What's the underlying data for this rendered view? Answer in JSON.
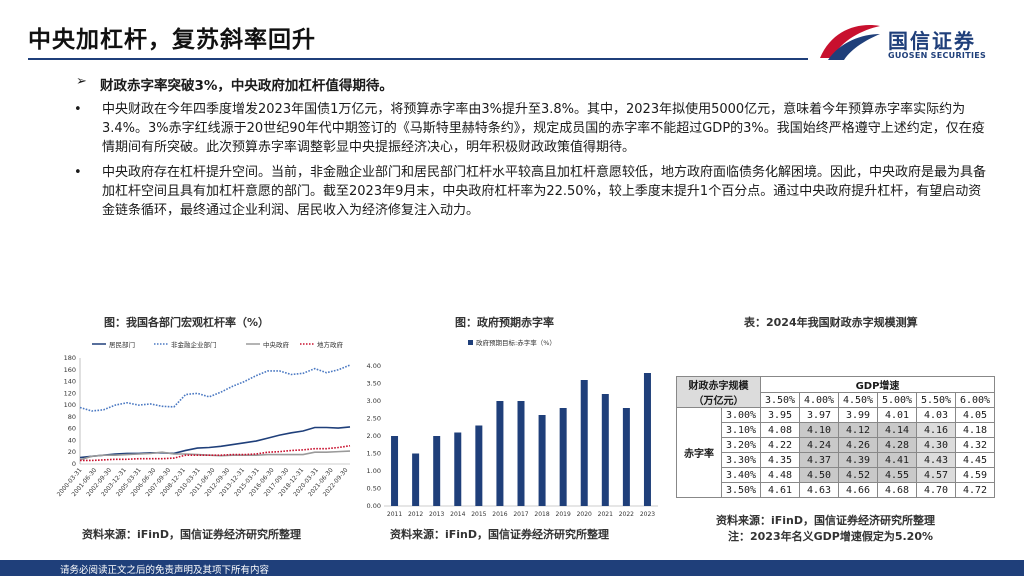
{
  "header": {
    "title": "中央加杠杆，复苏斜率回升",
    "logo_cn": "国信证券",
    "logo_en": "GUOSEN SECURITIES"
  },
  "content": {
    "heading": "财政赤字率突破3%，中央政府加杠杆值得期待。",
    "para1": "中央财政在今年四季度增发2023年国债1万亿元，将预算赤字率由3%提升至3.8%。其中，2023年拟使用5000亿元，意味着今年预算赤字率实际约为3.4%。3%赤字红线源于20世纪90年代中期签订的《马斯特里赫特条约》，规定成员国的赤字率不能超过GDP的3%。我国始终严格遵守上述约定，仅在疫情期间有所突破。此次预算赤字率调整彰显中央提振经济决心，明年积极财政政策值得期待。",
    "para2": "中央政府存在杠杆提升空间。当前，非金融企业部门和居民部门杠杆水平较高且加杠杆意愿较低，地方政府面临债务化解困境。因此，中央政府是最为具备加杠杆空间且具有加杠杆意愿的部门。截至2023年9月末，中央政府杠杆率为22.50%，较上季度末提升1个百分点。通过中央政府提升杠杆，有望启动资金链条循环，最终通过企业利润、居民收入为经济修复注入动力。"
  },
  "figures": {
    "fig1_caption": "图：我国各部门宏观杠杆率（%）",
    "fig2_caption": "图：政府预期赤字率",
    "fig3_caption": "表：2024年我国财政赤字规模测算",
    "source1": "资料来源：iFinD，国信证券经济研究所整理",
    "source2": "资料来源：iFinD，国信证券经济研究所整理",
    "source3": "资料来源：iFinD，国信证券经济研究所整理",
    "note3": "注：2023年名义GDP增速假定为5.20%"
  },
  "footer": {
    "disclaimer": "请务必阅读正文之后的免责声明及其项下所有内容"
  },
  "colors": {
    "navy": "#1f3f7a",
    "red": "#c8102e",
    "bar": "#1f3f7a"
  },
  "chart_data": [
    {
      "type": "line",
      "title": "",
      "legend": [
        "居民部门",
        "非金融企业部门",
        "中央政府",
        "地方政府"
      ],
      "legend_position": "top",
      "ylim": [
        0,
        180
      ],
      "y_ticks": [
        0,
        20,
        40,
        60,
        80,
        100,
        120,
        140,
        160,
        180
      ],
      "x_tick_labels": [
        "2000-03-31",
        "2001-06-30",
        "2002-09-30",
        "2003-12-31",
        "2005-03-31",
        "2006-06-30",
        "2007-09-30",
        "2008-12-31",
        "2010-03-31",
        "2011-06-30",
        "2012-09-30",
        "2013-12-31",
        "2015-03-31",
        "2016-06-30",
        "2017-09-30",
        "2018-12-31",
        "2020-03-31",
        "2021-06-30",
        "2022-09-30"
      ],
      "x": [
        2000,
        2001,
        2002,
        2003,
        2004,
        2005,
        2006,
        2007,
        2008,
        2009,
        2010,
        2011,
        2012,
        2013,
        2014,
        2015,
        2016,
        2017,
        2018,
        2019,
        2020,
        2021,
        2022,
        2023
      ],
      "series": [
        {
          "name": "居民部门",
          "style": "solid",
          "color": "#1f3f7a",
          "values": [
            11,
            13,
            15,
            17,
            18,
            18,
            19,
            19,
            18,
            23,
            27,
            28,
            30,
            33,
            36,
            39,
            44,
            49,
            53,
            56,
            62,
            62,
            61,
            63
          ]
        },
        {
          "name": "非金融企业部门",
          "style": "dotted",
          "color": "#4a78c2",
          "values": [
            96,
            90,
            92,
            100,
            104,
            100,
            102,
            98,
            97,
            118,
            120,
            114,
            122,
            132,
            140,
            150,
            158,
            158,
            152,
            154,
            162,
            155,
            160,
            168
          ]
        },
        {
          "name": "中央政府",
          "style": "solid",
          "color": "#9a9a9a",
          "values": [
            7,
            13,
            15,
            15,
            16,
            17,
            18,
            20,
            17,
            17,
            16,
            15,
            14,
            15,
            15,
            15,
            16,
            16,
            16,
            16,
            20,
            20,
            21,
            22
          ]
        },
        {
          "name": "地方政府",
          "style": "dotted",
          "color": "#c8102e",
          "values": [
            6,
            6,
            7,
            8,
            8,
            9,
            9,
            9,
            10,
            15,
            15,
            15,
            15,
            16,
            16,
            17,
            20,
            21,
            23,
            24,
            26,
            26,
            28,
            31
          ]
        }
      ]
    },
    {
      "type": "bar",
      "title": "",
      "legend": [
        "政府预期目标:赤字率（%）"
      ],
      "categories": [
        "2011",
        "2012",
        "2013",
        "2014",
        "2015",
        "2016",
        "2017",
        "2018",
        "2019",
        "2020",
        "2021",
        "2022",
        "2023"
      ],
      "values": [
        2.0,
        1.5,
        2.0,
        2.1,
        2.3,
        3.0,
        3.0,
        2.6,
        2.8,
        3.6,
        3.2,
        2.8,
        3.8
      ],
      "ylim": [
        0,
        4
      ],
      "y_ticks": [
        "0.00",
        "0.50",
        "1.00",
        "1.50",
        "2.00",
        "2.50",
        "3.00",
        "3.50",
        "4.00"
      ]
    },
    {
      "type": "table",
      "title": "",
      "row_header": "财政赤字规模",
      "row_header_unit": "（万亿元）",
      "row_group_label": "赤字率",
      "col_group_label": "GDP增速",
      "columns": [
        "3.50%",
        "4.00%",
        "4.50%",
        "5.00%",
        "5.50%",
        "6.00%"
      ],
      "rows": [
        {
          "rate": "3.00%",
          "values": [
            "3.95",
            "3.97",
            "3.99",
            "4.01",
            "4.03",
            "4.05"
          ]
        },
        {
          "rate": "3.10%",
          "values": [
            "4.08",
            "4.10",
            "4.12",
            "4.14",
            "4.16",
            "4.18"
          ]
        },
        {
          "rate": "3.20%",
          "values": [
            "4.22",
            "4.24",
            "4.26",
            "4.28",
            "4.30",
            "4.32"
          ]
        },
        {
          "rate": "3.30%",
          "values": [
            "4.35",
            "4.37",
            "4.39",
            "4.41",
            "4.43",
            "4.45"
          ]
        },
        {
          "rate": "3.40%",
          "values": [
            "4.48",
            "4.50",
            "4.52",
            "4.55",
            "4.57",
            "4.59"
          ]
        },
        {
          "rate": "3.50%",
          "values": [
            "4.61",
            "4.63",
            "4.66",
            "4.68",
            "4.70",
            "4.72"
          ]
        }
      ]
    }
  ]
}
